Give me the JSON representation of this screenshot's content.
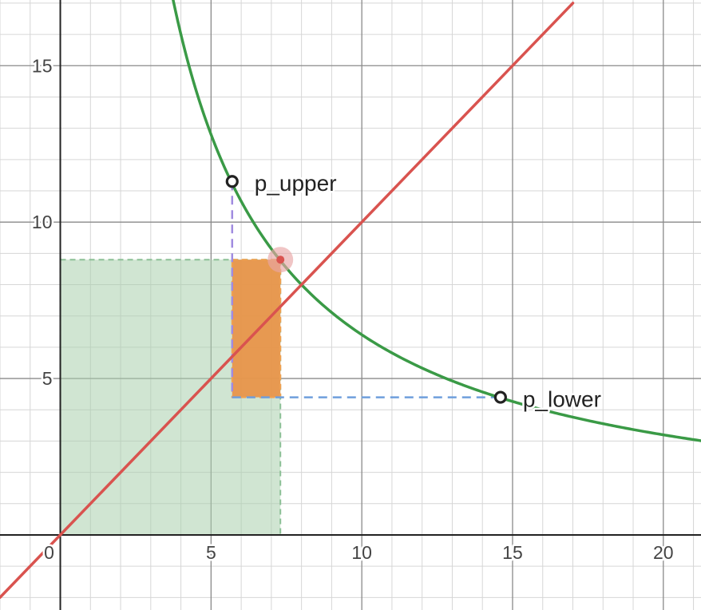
{
  "chart_data": {
    "type": "line",
    "title": "",
    "xlabel": "",
    "ylabel": "",
    "xlim": [
      -2,
      21.25
    ],
    "ylim": [
      -2.4,
      17.1
    ],
    "x_ticks": [
      0,
      5,
      10,
      15,
      20
    ],
    "y_ticks": [
      5,
      10,
      15
    ],
    "x_tick_labels": [
      "0",
      "5",
      "10",
      "15",
      "20"
    ],
    "y_tick_labels": [
      "5",
      "10",
      "15"
    ],
    "grid": true,
    "minor_grid_step": 1,
    "major_grid_step": 5,
    "colors": {
      "curve": "#3a9a46",
      "line": "#d9534f",
      "square_fill": "#a9cfad",
      "rect_fill": "#e8954a",
      "dash_vertical": "#a08be0",
      "dash_horizontal": "#6f9fdc",
      "point_stroke": "#222222",
      "intersection": "#e8a6a6"
    },
    "curves": [
      {
        "kind": "hyperbola",
        "equation_form": "y = k / x",
        "k": 64,
        "x_range": [
          3.6,
          21.25
        ],
        "color": "#3a9a46"
      },
      {
        "kind": "line",
        "equation_form": "y = x",
        "x_range": [
          -2,
          17
        ],
        "color": "#d9534f"
      }
    ],
    "points": [
      {
        "label": "p_upper",
        "x": 5.7,
        "y": 11.3
      },
      {
        "label": "p_lower",
        "x": 14.6,
        "y": 4.4
      },
      {
        "label": "",
        "x": 7.3,
        "y": 8.8
      }
    ],
    "regions": [
      {
        "kind": "rectangle",
        "x": [
          0,
          7.3
        ],
        "y": [
          0,
          8.8
        ],
        "color": "#a9cfad"
      },
      {
        "kind": "rectangle",
        "x": [
          5.7,
          7.3
        ],
        "y": [
          4.4,
          8.8
        ],
        "color": "#e8954a"
      }
    ],
    "dashed_lines": [
      {
        "from": [
          5.7,
          11.3
        ],
        "to": [
          5.7,
          4.4
        ],
        "color": "#a08be0"
      },
      {
        "from": [
          5.7,
          4.4
        ],
        "to": [
          14.6,
          4.4
        ],
        "color": "#6f9fdc"
      }
    ]
  }
}
